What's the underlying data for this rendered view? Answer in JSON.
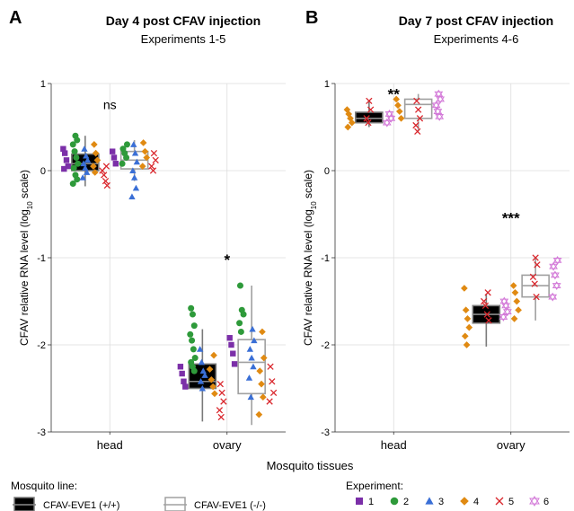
{
  "figure": {
    "xlabel": "Mosquito tissues",
    "legend_line_title": "Mosquito line:",
    "legend_exp_title": "Experiment:"
  },
  "colors": {
    "exp1": "#7b2fa8",
    "exp2": "#2e9a3a",
    "exp3": "#3a6fd6",
    "exp4": "#e08a12",
    "exp5": "#d9262c",
    "exp6": "#d37ad8",
    "box_filled": "#000000",
    "box_open": "#a0a0a0",
    "grid": "#dddddd"
  },
  "chart_data": [
    {
      "type": "box",
      "panel": "A",
      "title": "Day 4 post CFAV injection",
      "subtitle": "Experiments 1-5",
      "xlabel": "Mosquito tissues",
      "ylabel": "CFAV relative RNA level (log10 scale)",
      "categories": [
        "head",
        "ovary"
      ],
      "ylim": [
        -3,
        1
      ],
      "yticks": [
        -3,
        -2,
        -1,
        0,
        1
      ],
      "grid": true,
      "significance": [
        {
          "category": "head",
          "label": "ns",
          "y": 0.75
        },
        {
          "category": "ovary",
          "label": "*",
          "y": -1.0
        }
      ],
      "series": [
        {
          "name": "CFAV-EVE1 (+/+)",
          "style": "filled",
          "boxes": {
            "head": {
              "q1": 0.0,
              "median": 0.08,
              "q3": 0.19,
              "whisker_low": -0.18,
              "whisker_high": 0.4
            },
            "ovary": {
              "q1": -2.5,
              "median": -2.42,
              "q3": -2.22,
              "whisker_low": -2.88,
              "whisker_high": -1.82
            }
          },
          "points": {
            "head": [
              {
                "exp": 1,
                "y": 0.25
              },
              {
                "exp": 1,
                "y": 0.2
              },
              {
                "exp": 1,
                "y": 0.12
              },
              {
                "exp": 1,
                "y": 0.05
              },
              {
                "exp": 1,
                "y": 0.02
              },
              {
                "exp": 2,
                "y": 0.4
              },
              {
                "exp": 2,
                "y": 0.35
              },
              {
                "exp": 2,
                "y": 0.3
              },
              {
                "exp": 2,
                "y": 0.22
              },
              {
                "exp": 2,
                "y": 0.15
              },
              {
                "exp": 2,
                "y": 0.08
              },
              {
                "exp": 2,
                "y": 0.03
              },
              {
                "exp": 2,
                "y": -0.05
              },
              {
                "exp": 2,
                "y": -0.1
              },
              {
                "exp": 2,
                "y": -0.15
              },
              {
                "exp": 3,
                "y": 0.25
              },
              {
                "exp": 3,
                "y": 0.17
              },
              {
                "exp": 3,
                "y": 0.12
              },
              {
                "exp": 3,
                "y": 0.08
              },
              {
                "exp": 3,
                "y": 0.03
              },
              {
                "exp": 3,
                "y": -0.02
              },
              {
                "exp": 3,
                "y": -0.08
              },
              {
                "exp": 4,
                "y": 0.3
              },
              {
                "exp": 4,
                "y": 0.2
              },
              {
                "exp": 4,
                "y": 0.12
              },
              {
                "exp": 4,
                "y": 0.05
              },
              {
                "exp": 4,
                "y": -0.02
              },
              {
                "exp": 5,
                "y": 0.05
              },
              {
                "exp": 5,
                "y": 0.0
              },
              {
                "exp": 5,
                "y": -0.05
              },
              {
                "exp": 5,
                "y": -0.12
              },
              {
                "exp": 5,
                "y": -0.17
              }
            ],
            "ovary": [
              {
                "exp": 1,
                "y": -2.25
              },
              {
                "exp": 1,
                "y": -2.33
              },
              {
                "exp": 1,
                "y": -2.42
              },
              {
                "exp": 1,
                "y": -2.48
              },
              {
                "exp": 2,
                "y": -1.58
              },
              {
                "exp": 2,
                "y": -1.65
              },
              {
                "exp": 2,
                "y": -1.78
              },
              {
                "exp": 2,
                "y": -1.88
              },
              {
                "exp": 2,
                "y": -1.95
              },
              {
                "exp": 2,
                "y": -2.05
              },
              {
                "exp": 2,
                "y": -2.15
              },
              {
                "exp": 2,
                "y": -2.2
              },
              {
                "exp": 2,
                "y": -2.25
              },
              {
                "exp": 2,
                "y": -2.3
              },
              {
                "exp": 3,
                "y": -2.05
              },
              {
                "exp": 3,
                "y": -2.2
              },
              {
                "exp": 3,
                "y": -2.3
              },
              {
                "exp": 3,
                "y": -2.35
              },
              {
                "exp": 3,
                "y": -2.42
              },
              {
                "exp": 3,
                "y": -2.5
              },
              {
                "exp": 4,
                "y": -2.12
              },
              {
                "exp": 4,
                "y": -2.28
              },
              {
                "exp": 4,
                "y": -2.4
              },
              {
                "exp": 4,
                "y": -2.48
              },
              {
                "exp": 4,
                "y": -2.56
              },
              {
                "exp": 5,
                "y": -2.45
              },
              {
                "exp": 5,
                "y": -2.55
              },
              {
                "exp": 5,
                "y": -2.65
              },
              {
                "exp": 5,
                "y": -2.75
              },
              {
                "exp": 5,
                "y": -2.83
              }
            ]
          }
        },
        {
          "name": "CFAV-EVE1 (-/-)",
          "style": "open",
          "boxes": {
            "head": {
              "q1": 0.02,
              "median": 0.12,
              "q3": 0.22,
              "whisker_low": -0.12,
              "whisker_high": 0.35
            },
            "ovary": {
              "q1": -2.56,
              "median": -2.2,
              "q3": -1.94,
              "whisker_low": -2.92,
              "whisker_high": -1.32
            }
          },
          "points": {
            "head": [
              {
                "exp": 1,
                "y": 0.22
              },
              {
                "exp": 1,
                "y": 0.15
              },
              {
                "exp": 1,
                "y": 0.08
              },
              {
                "exp": 2,
                "y": 0.3
              },
              {
                "exp": 2,
                "y": 0.25
              },
              {
                "exp": 2,
                "y": 0.2
              },
              {
                "exp": 2,
                "y": 0.15
              },
              {
                "exp": 2,
                "y": 0.08
              },
              {
                "exp": 3,
                "y": 0.3
              },
              {
                "exp": 3,
                "y": 0.2
              },
              {
                "exp": 3,
                "y": 0.1
              },
              {
                "exp": 3,
                "y": 0.0
              },
              {
                "exp": 3,
                "y": -0.08
              },
              {
                "exp": 3,
                "y": -0.2
              },
              {
                "exp": 3,
                "y": -0.3
              },
              {
                "exp": 4,
                "y": 0.32
              },
              {
                "exp": 4,
                "y": 0.22
              },
              {
                "exp": 4,
                "y": 0.15
              },
              {
                "exp": 4,
                "y": 0.05
              },
              {
                "exp": 5,
                "y": 0.2
              },
              {
                "exp": 5,
                "y": 0.12
              },
              {
                "exp": 5,
                "y": 0.05
              },
              {
                "exp": 5,
                "y": 0.0
              }
            ],
            "ovary": [
              {
                "exp": 1,
                "y": -1.92
              },
              {
                "exp": 1,
                "y": -2.0
              },
              {
                "exp": 1,
                "y": -2.1
              },
              {
                "exp": 1,
                "y": -2.22
              },
              {
                "exp": 2,
                "y": -1.32
              },
              {
                "exp": 2,
                "y": -1.6
              },
              {
                "exp": 2,
                "y": -1.65
              },
              {
                "exp": 2,
                "y": -1.75
              },
              {
                "exp": 2,
                "y": -1.85
              },
              {
                "exp": 3,
                "y": -1.82
              },
              {
                "exp": 3,
                "y": -1.95
              },
              {
                "exp": 3,
                "y": -2.05
              },
              {
                "exp": 3,
                "y": -2.15
              },
              {
                "exp": 3,
                "y": -2.25
              },
              {
                "exp": 3,
                "y": -2.38
              },
              {
                "exp": 3,
                "y": -2.6
              },
              {
                "exp": 4,
                "y": -1.85
              },
              {
                "exp": 4,
                "y": -2.15
              },
              {
                "exp": 4,
                "y": -2.3
              },
              {
                "exp": 4,
                "y": -2.45
              },
              {
                "exp": 4,
                "y": -2.6
              },
              {
                "exp": 4,
                "y": -2.8
              },
              {
                "exp": 5,
                "y": -2.25
              },
              {
                "exp": 5,
                "y": -2.42
              },
              {
                "exp": 5,
                "y": -2.55
              },
              {
                "exp": 5,
                "y": -2.65
              }
            ]
          }
        }
      ]
    },
    {
      "type": "box",
      "panel": "B",
      "title": "Day 7 post CFAV injection",
      "subtitle": "Experiments 4-6",
      "xlabel": "Mosquito tissues",
      "ylabel": "CFAV relative RNA level (log10 scale)",
      "categories": [
        "head",
        "ovary"
      ],
      "ylim": [
        -3,
        1
      ],
      "yticks": [
        -3,
        -2,
        -1,
        0,
        1
      ],
      "grid": true,
      "significance": [
        {
          "category": "head",
          "label": "**",
          "y": 0.9
        },
        {
          "category": "ovary",
          "label": "***",
          "y": -0.52
        }
      ],
      "series": [
        {
          "name": "CFAV-EVE1 (+/+)",
          "style": "filled",
          "boxes": {
            "head": {
              "q1": 0.55,
              "median": 0.6,
              "q3": 0.67,
              "whisker_low": 0.5,
              "whisker_high": 0.8
            },
            "ovary": {
              "q1": -1.75,
              "median": -1.65,
              "q3": -1.55,
              "whisker_low": -2.02,
              "whisker_high": -1.42
            }
          },
          "points": {
            "head": [
              {
                "exp": 4,
                "y": 0.7
              },
              {
                "exp": 4,
                "y": 0.65
              },
              {
                "exp": 4,
                "y": 0.6
              },
              {
                "exp": 4,
                "y": 0.55
              },
              {
                "exp": 4,
                "y": 0.5
              },
              {
                "exp": 5,
                "y": 0.8
              },
              {
                "exp": 5,
                "y": 0.7
              },
              {
                "exp": 5,
                "y": 0.6
              },
              {
                "exp": 5,
                "y": 0.55
              },
              {
                "exp": 6,
                "y": 0.65
              },
              {
                "exp": 6,
                "y": 0.6
              },
              {
                "exp": 6,
                "y": 0.55
              }
            ],
            "ovary": [
              {
                "exp": 4,
                "y": -1.35
              },
              {
                "exp": 4,
                "y": -1.6
              },
              {
                "exp": 4,
                "y": -1.7
              },
              {
                "exp": 4,
                "y": -1.8
              },
              {
                "exp": 4,
                "y": -1.9
              },
              {
                "exp": 4,
                "y": -2.0
              },
              {
                "exp": 5,
                "y": -1.4
              },
              {
                "exp": 5,
                "y": -1.5
              },
              {
                "exp": 5,
                "y": -1.55
              },
              {
                "exp": 5,
                "y": -1.65
              },
              {
                "exp": 5,
                "y": -1.72
              },
              {
                "exp": 6,
                "y": -1.5
              },
              {
                "exp": 6,
                "y": -1.55
              },
              {
                "exp": 6,
                "y": -1.62
              },
              {
                "exp": 6,
                "y": -1.68
              }
            ]
          }
        },
        {
          "name": "CFAV-EVE1 (-/-)",
          "style": "open",
          "boxes": {
            "head": {
              "q1": 0.6,
              "median": 0.76,
              "q3": 0.82,
              "whisker_low": 0.45,
              "whisker_high": 0.88
            },
            "ovary": {
              "q1": -1.45,
              "median": -1.32,
              "q3": -1.2,
              "whisker_low": -1.72,
              "whisker_high": -1.0
            }
          },
          "points": {
            "head": [
              {
                "exp": 4,
                "y": 0.82
              },
              {
                "exp": 4,
                "y": 0.75
              },
              {
                "exp": 4,
                "y": 0.68
              },
              {
                "exp": 4,
                "y": 0.6
              },
              {
                "exp": 5,
                "y": 0.8
              },
              {
                "exp": 5,
                "y": 0.7
              },
              {
                "exp": 5,
                "y": 0.6
              },
              {
                "exp": 5,
                "y": 0.52
              },
              {
                "exp": 5,
                "y": 0.45
              },
              {
                "exp": 6,
                "y": 0.88
              },
              {
                "exp": 6,
                "y": 0.82
              },
              {
                "exp": 6,
                "y": 0.75
              },
              {
                "exp": 6,
                "y": 0.68
              },
              {
                "exp": 6,
                "y": 0.62
              }
            ],
            "ovary": [
              {
                "exp": 4,
                "y": -1.32
              },
              {
                "exp": 4,
                "y": -1.4
              },
              {
                "exp": 4,
                "y": -1.5
              },
              {
                "exp": 4,
                "y": -1.6
              },
              {
                "exp": 4,
                "y": -1.7
              },
              {
                "exp": 5,
                "y": -1.0
              },
              {
                "exp": 5,
                "y": -1.08
              },
              {
                "exp": 5,
                "y": -1.22
              },
              {
                "exp": 5,
                "y": -1.3
              },
              {
                "exp": 5,
                "y": -1.45
              },
              {
                "exp": 6,
                "y": -1.03
              },
              {
                "exp": 6,
                "y": -1.1
              },
              {
                "exp": 6,
                "y": -1.2
              },
              {
                "exp": 6,
                "y": -1.32
              },
              {
                "exp": 6,
                "y": -1.45
              }
            ]
          }
        }
      ]
    }
  ],
  "legend": {
    "lines": [
      {
        "label": "CFAV-EVE1 (+/+)",
        "style": "filled"
      },
      {
        "label": "CFAV-EVE1 (-/-)",
        "style": "open"
      }
    ],
    "experiments": [
      {
        "label": "1",
        "exp": 1
      },
      {
        "label": "2",
        "exp": 2
      },
      {
        "label": "3",
        "exp": 3
      },
      {
        "label": "4",
        "exp": 4
      },
      {
        "label": "5",
        "exp": 5
      },
      {
        "label": "6",
        "exp": 6
      }
    ]
  }
}
